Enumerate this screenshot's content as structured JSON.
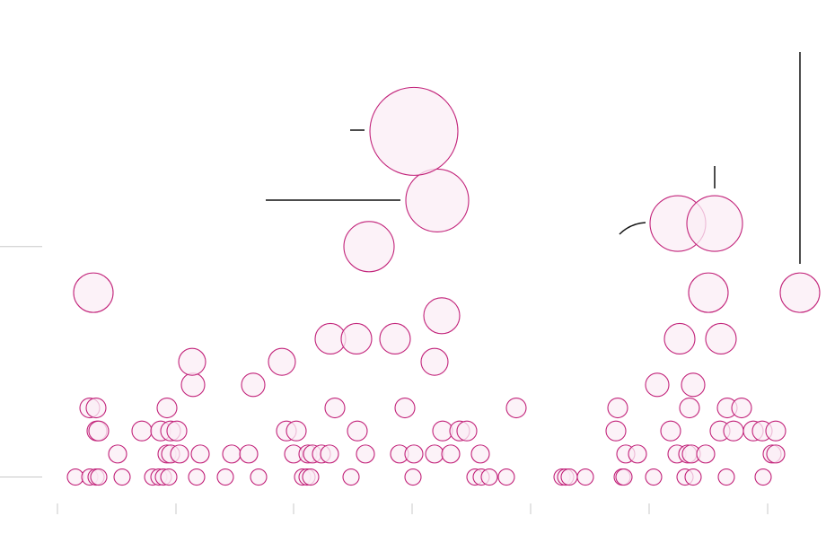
{
  "chart_data": {
    "type": "scatter",
    "x": [
      84,
      100,
      107,
      110,
      136,
      170,
      177,
      182,
      188,
      219,
      251,
      288,
      337,
      342,
      346,
      391,
      460,
      529,
      536,
      545,
      564,
      626,
      630,
      634,
      652,
      693,
      695,
      728,
      763,
      772,
      809,
      850,
      131,
      186,
      190,
      200,
      223,
      258,
      277,
      327,
      343,
      348,
      358,
      367,
      407,
      445,
      461,
      484,
      502,
      535,
      697,
      710,
      754,
      766,
      770,
      786,
      860,
      864,
      108,
      110,
      158,
      179,
      190,
      197,
      319,
      330,
      398,
      493,
      512,
      520,
      686,
      747,
      802,
      817,
      839,
      849,
      864,
      100,
      107,
      186,
      373,
      451,
      575,
      688,
      768,
      810,
      826,
      215,
      282,
      732,
      772,
      214,
      314,
      484,
      368,
      397,
      440,
      757,
      803,
      492,
      104,
      789,
      891,
      411,
      755,
      796,
      487,
      461
    ],
    "values": [
      0,
      0,
      0,
      0,
      0,
      0,
      0,
      0,
      0,
      0,
      0,
      0,
      0,
      0,
      0,
      0,
      0,
      0,
      0,
      0,
      0,
      0,
      0,
      0,
      0,
      0,
      0,
      0,
      0,
      0,
      0,
      0,
      1,
      1,
      1,
      1,
      1,
      1,
      1,
      1,
      1,
      1,
      1,
      1,
      1,
      1,
      1,
      1,
      1,
      1,
      1,
      1,
      1,
      1,
      1,
      1,
      1,
      1,
      2,
      2,
      2,
      2,
      2,
      2,
      2,
      2,
      2,
      2,
      2,
      2,
      2,
      2,
      2,
      2,
      2,
      2,
      2,
      3,
      3,
      3,
      3,
      3,
      3,
      3,
      3,
      3,
      3,
      4,
      4,
      4,
      4,
      5,
      5,
      5,
      6,
      6,
      6,
      6,
      6,
      7,
      8,
      8,
      8,
      10,
      11,
      11,
      12,
      15
    ],
    "sizes": [
      9,
      9,
      9,
      9,
      9,
      9,
      9,
      9,
      9,
      9,
      9,
      9,
      9,
      9,
      9,
      9,
      9,
      9,
      9,
      9,
      9,
      9,
      9,
      9,
      9,
      9,
      9,
      9,
      9,
      9,
      9,
      9,
      10,
      10,
      10,
      10,
      10,
      10,
      10,
      10,
      10,
      10,
      10,
      10,
      10,
      10,
      10,
      10,
      10,
      10,
      10,
      10,
      10,
      10,
      10,
      10,
      10,
      10,
      11,
      11,
      11,
      11,
      11,
      11,
      11,
      11,
      11,
      11,
      11,
      11,
      11,
      11,
      11,
      11,
      11,
      11,
      11,
      11,
      11,
      11,
      11,
      11,
      11,
      11,
      11,
      11,
      11,
      13,
      13,
      13,
      13,
      15,
      15,
      15,
      17,
      17,
      17,
      17,
      17,
      20,
      22,
      22,
      22,
      28,
      31,
      31,
      35,
      49
    ],
    "color": "#c2237a",
    "fill_color": "#fbeef5",
    "xlim": [
      0,
      920
    ],
    "xticks": [
      64,
      196,
      327,
      459,
      591,
      723,
      855
    ],
    "ylim": [
      -3.6,
      20.7
    ],
    "yticks": [
      0,
      10
    ],
    "grid": true
  }
}
